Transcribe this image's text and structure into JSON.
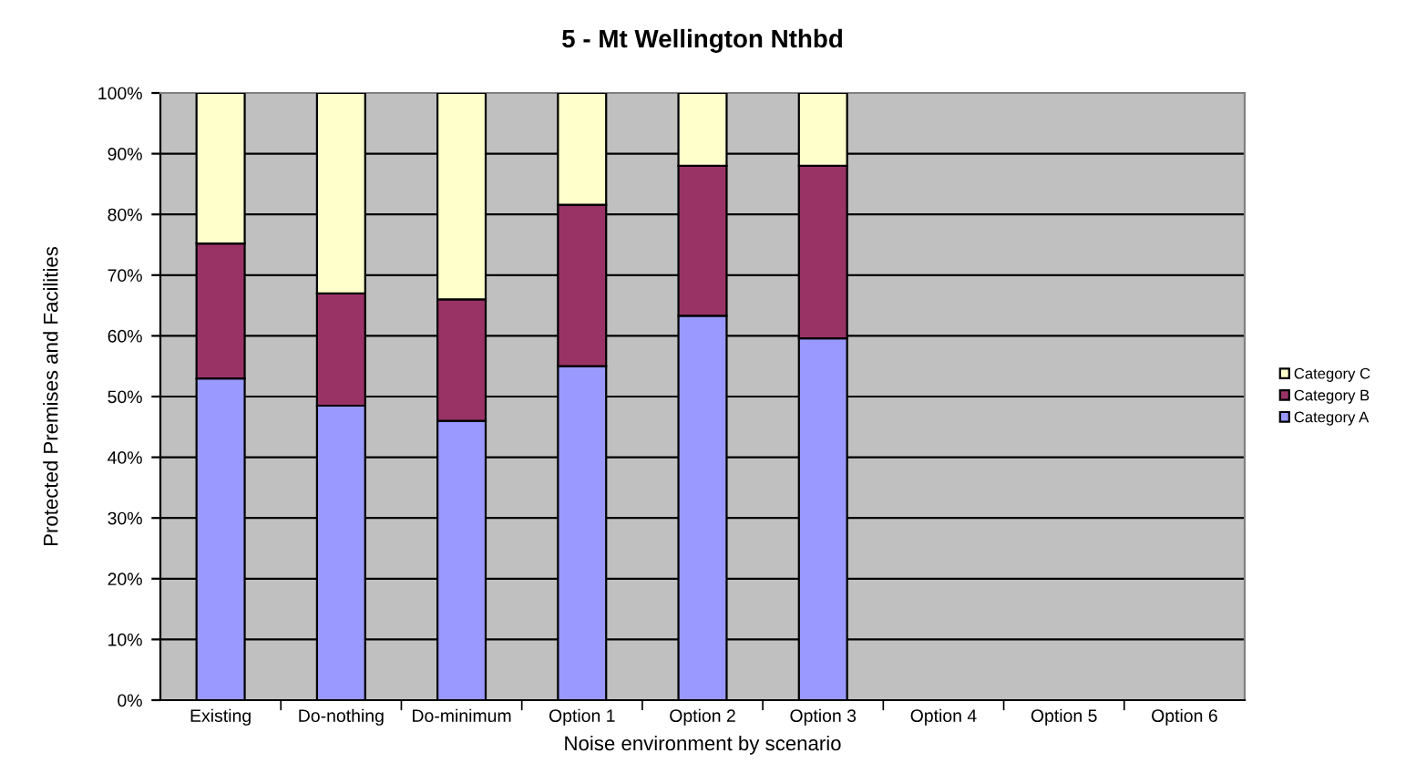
{
  "chart_data": {
    "type": "bar",
    "stacked": true,
    "title": "5 - Mt Wellington Nthbd",
    "xlabel": "Noise environment by scenario",
    "ylabel": "Protected Premises and Facilities",
    "categories": [
      "Existing",
      "Do-nothing",
      "Do-minimum",
      "Option 1",
      "Option 2",
      "Option 3",
      "Option 4",
      "Option 5",
      "Option 6"
    ],
    "series": [
      {
        "name": "Category A",
        "color": "#9999ff",
        "values": [
          53,
          48.5,
          46,
          55,
          63.3,
          59.6,
          null,
          null,
          null
        ]
      },
      {
        "name": "Category B",
        "color": "#993366",
        "values": [
          22.2,
          18.5,
          20,
          26.6,
          24.7,
          28.4,
          null,
          null,
          null
        ]
      },
      {
        "name": "Category C",
        "color": "#ffffcc",
        "values": [
          24.8,
          33,
          34,
          18.4,
          12,
          12,
          null,
          null,
          null
        ]
      }
    ],
    "ylim": [
      0,
      100
    ],
    "yticks": [
      {
        "value": 0,
        "label": "0%"
      },
      {
        "value": 10,
        "label": "10%"
      },
      {
        "value": 20,
        "label": "20%"
      },
      {
        "value": 30,
        "label": "30%"
      },
      {
        "value": 40,
        "label": "40%"
      },
      {
        "value": 50,
        "label": "50%"
      },
      {
        "value": 60,
        "label": "60%"
      },
      {
        "value": 70,
        "label": "70%"
      },
      {
        "value": 80,
        "label": "80%"
      },
      {
        "value": 90,
        "label": "90%"
      },
      {
        "value": 100,
        "label": "100%"
      }
    ],
    "grid": "y",
    "legend": "right"
  }
}
